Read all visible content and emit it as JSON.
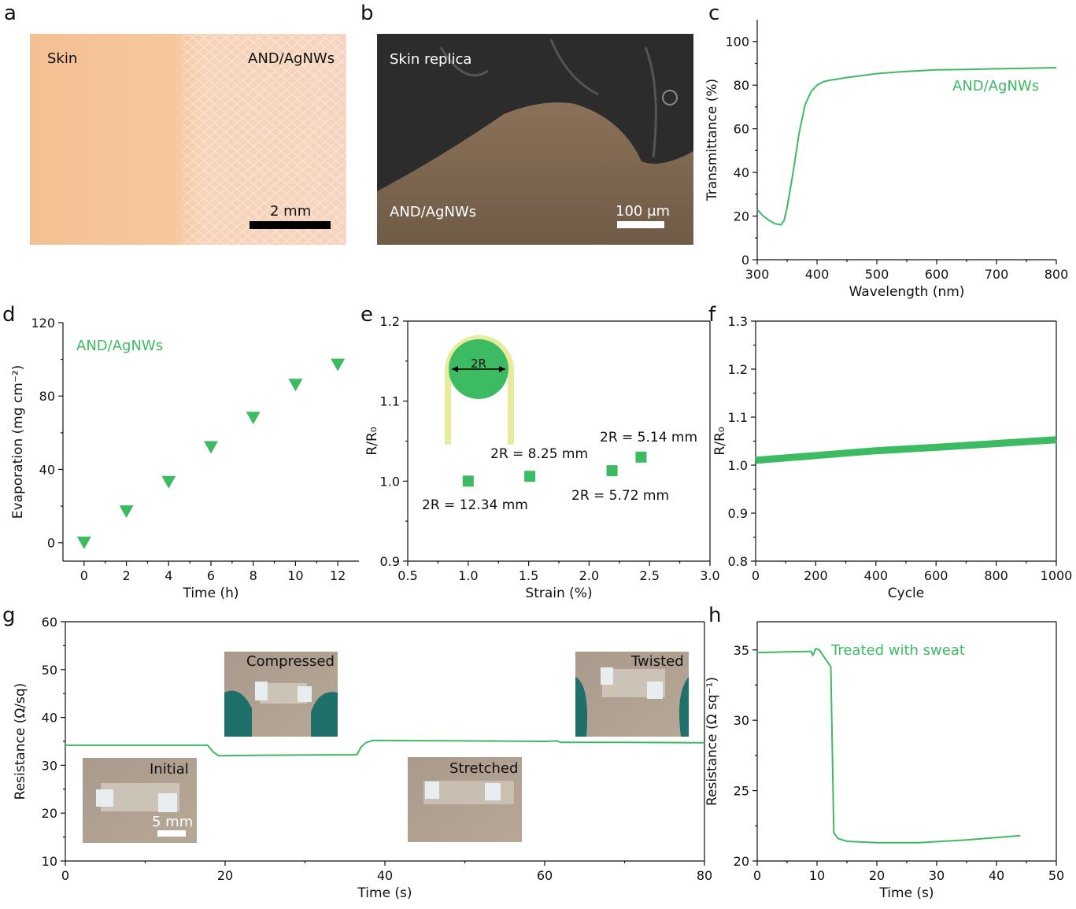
{
  "colors": {
    "series": "#3dbb62",
    "axis": "#111111"
  },
  "panels": {
    "a": {
      "letter": "a",
      "label_left": "Skin",
      "label_right": "AND/AgNWs",
      "scale": "2 mm"
    },
    "b": {
      "letter": "b",
      "label_top": "Skin replica",
      "label_bottom": "AND/AgNWs",
      "scale": "100 μm"
    },
    "c": {
      "letter": "c"
    },
    "d": {
      "letter": "d"
    },
    "e": {
      "letter": "e",
      "inset_label": "2R"
    },
    "f": {
      "letter": "f"
    },
    "g": {
      "letter": "g",
      "photos": [
        "Initial",
        "Compressed",
        "Stretched",
        "Twisted"
      ],
      "scale": "5 mm"
    },
    "h": {
      "letter": "h"
    }
  },
  "chart_data": [
    {
      "id": "c",
      "type": "line",
      "xlabel": "Wavelength (nm)",
      "ylabel": "Transmittance (%)",
      "xlim": [
        300,
        800
      ],
      "ylim": [
        0,
        110
      ],
      "xticks": [
        300,
        400,
        500,
        600,
        700,
        800
      ],
      "yticks": [
        0,
        20,
        40,
        60,
        80,
        100
      ],
      "series": [
        {
          "name": "AND/AgNWs",
          "x": [
            300,
            310,
            320,
            330,
            340,
            345,
            350,
            360,
            370,
            380,
            390,
            400,
            410,
            420,
            450,
            500,
            550,
            600,
            650,
            700,
            750,
            800
          ],
          "y": [
            23,
            20,
            18,
            16.5,
            16,
            18,
            24,
            40,
            58,
            71,
            77,
            80,
            81.5,
            82.2,
            83.5,
            85.3,
            86.3,
            87,
            87.2,
            87.5,
            87.7,
            88
          ]
        }
      ]
    },
    {
      "id": "d",
      "type": "scatter",
      "xlabel": "Time (h)",
      "ylabel": "Evaporation (mg cm⁻²)",
      "xlim": [
        -1,
        13
      ],
      "ylim": [
        -10,
        120
      ],
      "xticks": [
        0,
        2,
        4,
        6,
        8,
        10,
        12
      ],
      "yticks": [
        0,
        40,
        80,
        120
      ],
      "series": [
        {
          "name": "AND/AgNWs",
          "x": [
            0,
            2,
            4,
            6,
            8,
            10,
            12
          ],
          "y": [
            0,
            17,
            33,
            52,
            68,
            86,
            97
          ]
        }
      ]
    },
    {
      "id": "e",
      "type": "scatter",
      "xlabel": "Strain (%)",
      "ylabel": "R/R₀",
      "xlim": [
        0.5,
        3.0
      ],
      "ylim": [
        0.9,
        1.2
      ],
      "xticks": [
        0.5,
        1.0,
        1.5,
        2.0,
        2.5,
        3.0
      ],
      "yticks": [
        0.9,
        1.0,
        1.1,
        1.2
      ],
      "series": [
        {
          "x": [
            1.0,
            1.51,
            2.19,
            2.43
          ],
          "y": [
            1.0,
            1.006,
            1.013,
            1.03
          ]
        }
      ],
      "annotations": [
        "2R = 12.34 mm",
        "2R = 8.25 mm",
        "2R = 5.72 mm",
        "2R = 5.14 mm"
      ]
    },
    {
      "id": "f",
      "type": "line",
      "xlabel": "Cycle",
      "ylabel": "R/R₀",
      "xlim": [
        0,
        1000
      ],
      "ylim": [
        0.8,
        1.3
      ],
      "xticks": [
        0,
        200,
        400,
        600,
        800,
        1000
      ],
      "yticks": [
        0.8,
        0.9,
        1.0,
        1.1,
        1.2,
        1.3
      ],
      "series": [
        {
          "x": [
            0,
            200,
            400,
            600,
            800,
            1000
          ],
          "y": [
            1.01,
            1.02,
            1.03,
            1.037,
            1.045,
            1.053
          ]
        }
      ]
    },
    {
      "id": "g",
      "type": "line",
      "xlabel": "Time (s)",
      "ylabel": "Resistance (Ω/sq)",
      "xlim": [
        0,
        80
      ],
      "ylim": [
        10,
        60
      ],
      "xticks": [
        0,
        20,
        40,
        60,
        80
      ],
      "yticks": [
        10,
        20,
        30,
        40,
        50,
        60
      ],
      "series": [
        {
          "x": [
            0,
            17.8,
            18.5,
            19.2,
            25,
            36.5,
            37,
            37.6,
            38.5,
            50,
            60,
            61.5,
            62,
            70,
            80
          ],
          "y": [
            34.2,
            34.2,
            32.8,
            32.0,
            32.1,
            32.2,
            33.8,
            34.7,
            35.2,
            35.1,
            35.0,
            35.1,
            34.8,
            34.8,
            34.7
          ]
        }
      ]
    },
    {
      "id": "h",
      "type": "line",
      "xlabel": "Time (s)",
      "ylabel": "Resistance (Ω sq⁻¹)",
      "xlim": [
        0,
        50
      ],
      "ylim": [
        20,
        37
      ],
      "xticks": [
        0,
        10,
        20,
        30,
        40,
        50
      ],
      "yticks": [
        20,
        25,
        30,
        35
      ],
      "series": [
        {
          "name": "Treated with sweat",
          "x": [
            0,
            9,
            9.3,
            9.8,
            10.4,
            11,
            12.3,
            12.8,
            13.5,
            15,
            20,
            27,
            35,
            44
          ],
          "y": [
            34.8,
            34.9,
            34.6,
            35.1,
            35.0,
            34.6,
            33.8,
            22.0,
            21.6,
            21.4,
            21.3,
            21.3,
            21.5,
            21.8
          ]
        }
      ]
    }
  ]
}
